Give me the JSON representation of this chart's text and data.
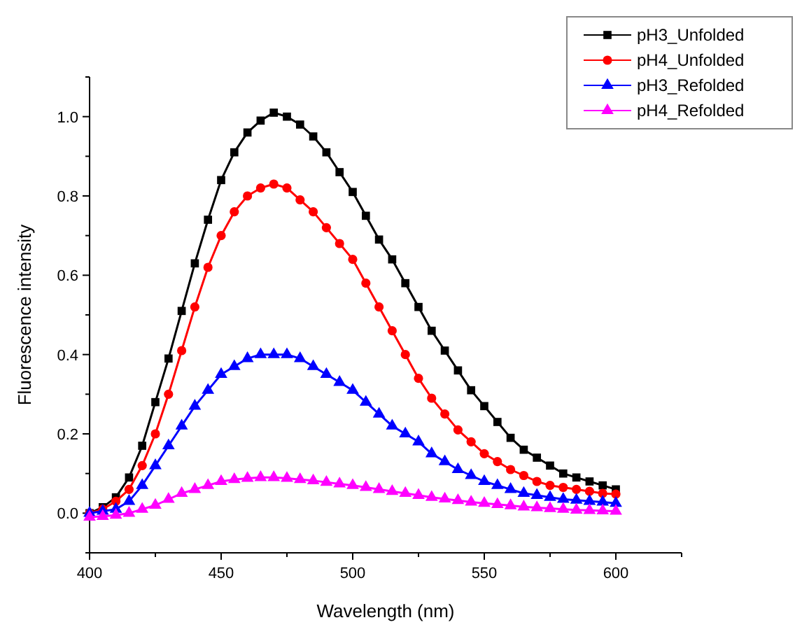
{
  "chart_data": {
    "type": "line",
    "xlabel": "Wavelength (nm)",
    "ylabel": "Fluorescence intensity",
    "x": [
      400,
      405,
      410,
      415,
      420,
      425,
      430,
      435,
      440,
      445,
      450,
      455,
      460,
      465,
      470,
      475,
      480,
      485,
      490,
      495,
      500,
      505,
      510,
      515,
      520,
      525,
      530,
      535,
      540,
      545,
      550,
      555,
      560,
      565,
      570,
      575,
      580,
      585,
      590,
      595,
      600
    ],
    "series": [
      {
        "name": "pH3_Unfolded",
        "color": "#000000",
        "marker": "square",
        "values": [
          0.0,
          0.015,
          0.04,
          0.09,
          0.17,
          0.28,
          0.39,
          0.51,
          0.63,
          0.74,
          0.84,
          0.91,
          0.96,
          0.99,
          1.01,
          1.0,
          0.98,
          0.95,
          0.91,
          0.86,
          0.81,
          0.75,
          0.69,
          0.64,
          0.58,
          0.52,
          0.46,
          0.41,
          0.36,
          0.31,
          0.27,
          0.23,
          0.19,
          0.16,
          0.14,
          0.12,
          0.1,
          0.09,
          0.08,
          0.07,
          0.06
        ]
      },
      {
        "name": "pH4_Unfolded",
        "color": "#ff0000",
        "marker": "circle",
        "values": [
          0.0,
          0.01,
          0.03,
          0.06,
          0.12,
          0.2,
          0.3,
          0.41,
          0.52,
          0.62,
          0.7,
          0.76,
          0.8,
          0.82,
          0.83,
          0.82,
          0.79,
          0.76,
          0.72,
          0.68,
          0.64,
          0.58,
          0.52,
          0.46,
          0.4,
          0.34,
          0.29,
          0.25,
          0.21,
          0.18,
          0.15,
          0.13,
          0.11,
          0.095,
          0.08,
          0.07,
          0.065,
          0.06,
          0.055,
          0.05,
          0.048
        ]
      },
      {
        "name": "pH3_Refolded",
        "color": "#0000ff",
        "marker": "triangle",
        "values": [
          0.0,
          0.005,
          0.01,
          0.03,
          0.07,
          0.12,
          0.17,
          0.22,
          0.27,
          0.31,
          0.35,
          0.37,
          0.39,
          0.4,
          0.4,
          0.4,
          0.39,
          0.37,
          0.35,
          0.33,
          0.31,
          0.28,
          0.25,
          0.22,
          0.2,
          0.18,
          0.15,
          0.13,
          0.11,
          0.095,
          0.08,
          0.07,
          0.06,
          0.05,
          0.045,
          0.04,
          0.035,
          0.033,
          0.03,
          0.028,
          0.025
        ]
      },
      {
        "name": "pH4_Refolded",
        "color": "#ff00ff",
        "marker": "triangle",
        "values": [
          -0.01,
          -0.008,
          -0.005,
          0.0,
          0.01,
          0.02,
          0.035,
          0.05,
          0.06,
          0.07,
          0.08,
          0.085,
          0.088,
          0.09,
          0.09,
          0.088,
          0.085,
          0.082,
          0.078,
          0.074,
          0.07,
          0.065,
          0.06,
          0.055,
          0.05,
          0.045,
          0.04,
          0.036,
          0.032,
          0.028,
          0.025,
          0.022,
          0.019,
          0.016,
          0.014,
          0.012,
          0.01,
          0.008,
          0.007,
          0.006,
          0.005
        ]
      }
    ],
    "xlim": [
      400,
      625
    ],
    "xticks": [
      400,
      {
        "value": 425,
        "label": null
      },
      450,
      {
        "value": 475,
        "label": null
      },
      500,
      {
        "value": 525,
        "label": null
      },
      550,
      {
        "value": 575,
        "label": null
      },
      600,
      {
        "value": 625,
        "label": null
      }
    ],
    "ylim": [
      -0.1,
      1.1
    ],
    "yticks": [
      {
        "value": -0.1,
        "label": null
      },
      {
        "value": 0,
        "label": "0.0"
      },
      {
        "value": 0.1,
        "label": null
      },
      {
        "value": 0.2,
        "label": "0.2"
      },
      {
        "value": 0.3,
        "label": null
      },
      {
        "value": 0.4,
        "label": "0.4"
      },
      {
        "value": 0.5,
        "label": null
      },
      {
        "value": 0.6,
        "label": "0.6"
      },
      {
        "value": 0.7,
        "label": null
      },
      {
        "value": 0.8,
        "label": "0.8"
      },
      {
        "value": 0.9,
        "label": null
      },
      {
        "value": 1.0,
        "label": "1.0"
      },
      {
        "value": 1.1,
        "label": null
      }
    ],
    "line_style": "solid",
    "grid": false,
    "legend": "top right"
  }
}
